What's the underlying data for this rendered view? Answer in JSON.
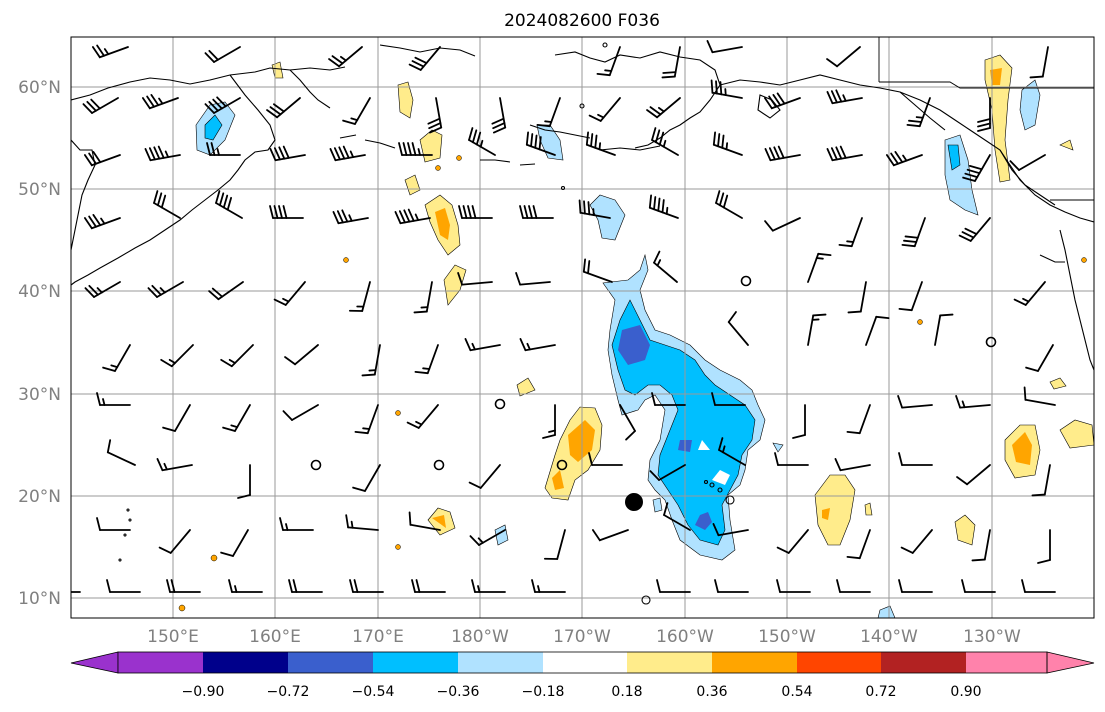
{
  "title": "2024082600 F036",
  "lat_labels": [
    "60°N",
    "50°N",
    "40°N",
    "30°N",
    "20°N",
    "10°N"
  ],
  "lon_labels": [
    "150°E",
    "160°E",
    "170°E",
    "180°W",
    "170°W",
    "160°W",
    "150°W",
    "140°W",
    "130°W"
  ],
  "colorbar": {
    "tick_labels": [
      "−0.90",
      "−0.72",
      "−0.54",
      "−0.36",
      "−0.18",
      "0.18",
      "0.36",
      "0.54",
      "0.72",
      "0.90"
    ],
    "colors": [
      "#9a32cd",
      "#00008b",
      "#3a5fcd",
      "#00bfff",
      "#b0e2ff",
      "#ffffff",
      "#ffec8b",
      "#ffa500",
      "#ff4500",
      "#b22222",
      "#ff82ab"
    ]
  },
  "map": {
    "projection": "PlateCarree",
    "lon_range": [
      140,
      240
    ],
    "lat_range": [
      8,
      65
    ],
    "gridlines": true,
    "field_colors": {
      "neg_light": "#b0e2ff",
      "neg_mid": "#00bfff",
      "neg_strong": "#3a5fcd",
      "pos_light": "#ffec8b",
      "pos_mid": "#ffa500"
    }
  }
}
